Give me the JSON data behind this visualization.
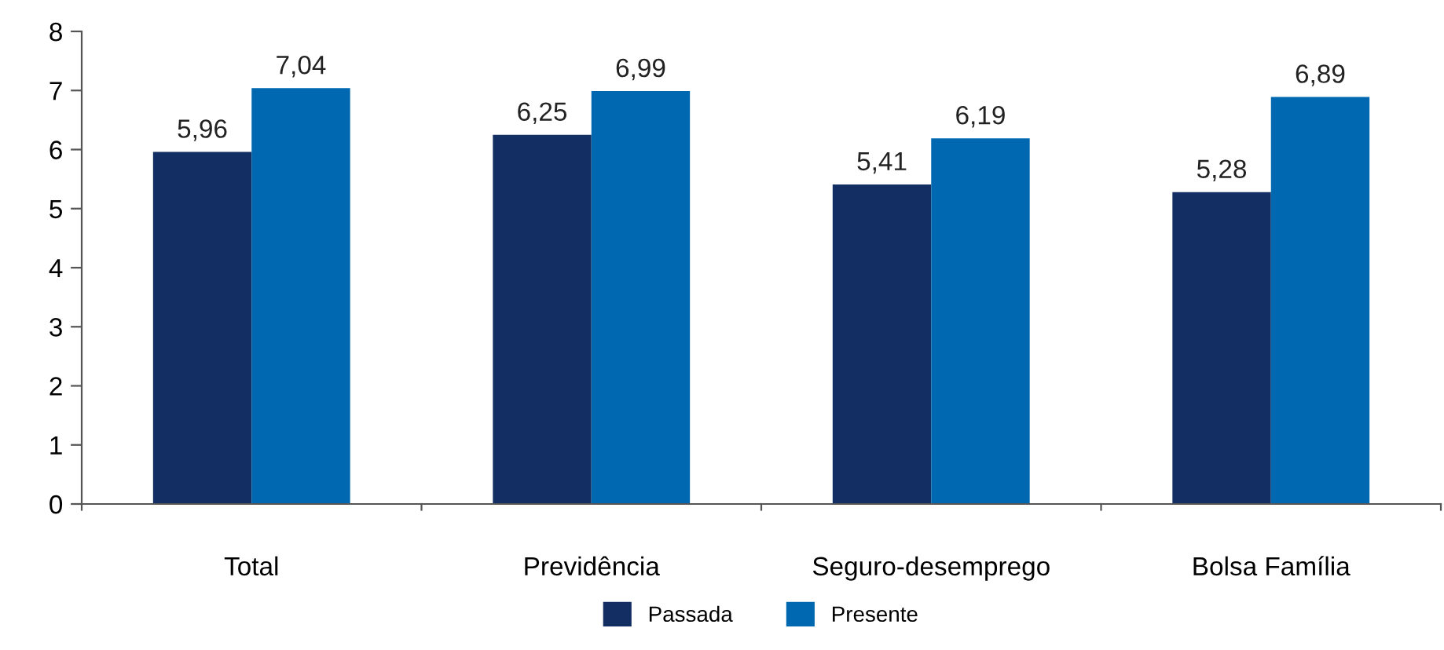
{
  "chart_data": {
    "type": "bar",
    "categories": [
      "Total",
      "Previdência",
      "Seguro-desemprego",
      "Bolsa Família"
    ],
    "series": [
      {
        "name": "Passada",
        "color": "#132e62",
        "values": [
          5.96,
          6.25,
          5.41,
          5.28
        ],
        "value_labels": [
          "5,96",
          "6,25",
          "5,41",
          "5,28"
        ]
      },
      {
        "name": "Presente",
        "color": "#0068b0",
        "values": [
          7.04,
          6.99,
          6.19,
          6.89
        ],
        "value_labels": [
          "7,04",
          "6,99",
          "6,19",
          "6,89"
        ]
      }
    ],
    "ylim": [
      0,
      8
    ],
    "yticks": [
      0,
      1,
      2,
      3,
      4,
      5,
      6,
      7,
      8
    ],
    "grid": false,
    "legend": "bottom"
  }
}
